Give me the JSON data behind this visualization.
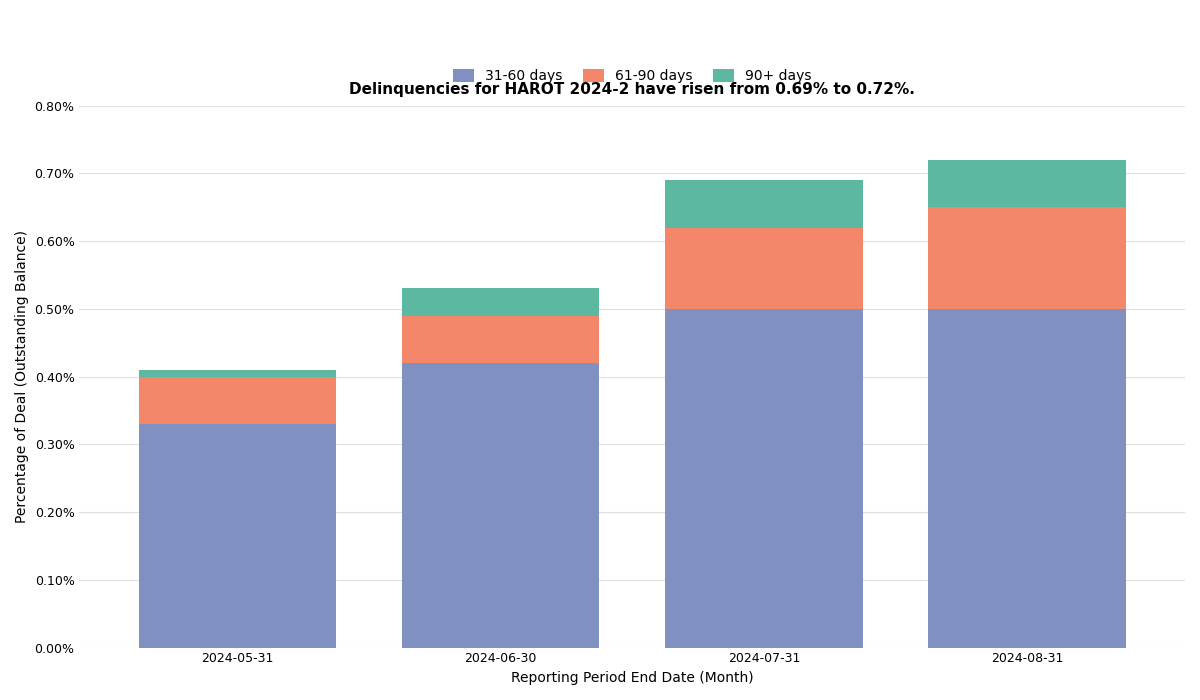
{
  "title": "Delinquencies for HAROT 2024-2 have risen from 0.69% to 0.72%.",
  "xlabel": "Reporting Period End Date (Month)",
  "ylabel": "Percentage of Deal (Outstanding Balance)",
  "categories": [
    "2024-05-31",
    "2024-06-30",
    "2024-07-31",
    "2024-08-31"
  ],
  "series": {
    "31-60 days": [
      0.0033,
      0.0042,
      0.005,
      0.005
    ],
    "61-90 days": [
      0.0007,
      0.0007,
      0.0012,
      0.0015
    ],
    "90+ days": [
      0.0001,
      0.0004,
      0.0007,
      0.0007
    ]
  },
  "colors": {
    "31-60 days": "#8090C0",
    "61-90 days": "#F4876A",
    "90+ days": "#5CB8A0"
  },
  "ylim": [
    0,
    0.008
  ],
  "yticks": [
    0,
    0.001,
    0.002,
    0.003,
    0.004,
    0.005,
    0.006,
    0.007,
    0.008
  ],
  "ytick_labels": [
    "0.00%",
    "0.10%",
    "0.20%",
    "0.30%",
    "0.40%",
    "0.50%",
    "0.60%",
    "0.70%",
    "0.80%"
  ],
  "background_color": "#FFFFFF",
  "grid_color": "#E0E0E0",
  "bar_width": 0.75,
  "title_fontsize": 11,
  "axis_label_fontsize": 10,
  "tick_fontsize": 9,
  "legend_fontsize": 10
}
